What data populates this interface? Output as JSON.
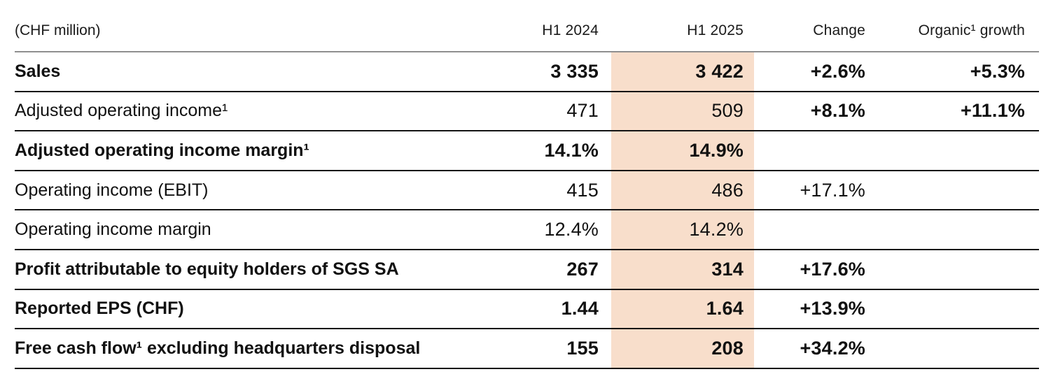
{
  "table": {
    "unit_label": "(CHF million)",
    "columns": [
      "H1 2024",
      "H1 2025",
      "Change",
      "Organic¹ growth"
    ],
    "rows": [
      {
        "label": "Sales",
        "h1_2024": "3 335",
        "h1_2025": "3 422",
        "change": "+2.6%",
        "organic": "+5.3%"
      },
      {
        "label": "Adjusted operating income¹",
        "h1_2024": "471",
        "h1_2025": "509",
        "change": "+8.1%",
        "organic": "+11.1%"
      },
      {
        "label": "Adjusted operating income margin¹",
        "h1_2024": "14.1%",
        "h1_2025": "14.9%",
        "change": "",
        "organic": ""
      },
      {
        "label": "Operating income (EBIT)",
        "h1_2024": "415",
        "h1_2025": "486",
        "change": "+17.1%",
        "organic": ""
      },
      {
        "label": "Operating income margin",
        "h1_2024": "12.4%",
        "h1_2025": "14.2%",
        "change": "",
        "organic": ""
      },
      {
        "label": "Profit attributable to equity holders of SGS SA",
        "h1_2024": "267",
        "h1_2025": "314",
        "change": "+17.6%",
        "organic": ""
      },
      {
        "label": "Reported EPS (CHF)",
        "h1_2024": "1.44",
        "h1_2025": "1.64",
        "change": "+13.9%",
        "organic": ""
      },
      {
        "label": "Free cash flow¹ excluding headquarters disposal",
        "h1_2024": "155",
        "h1_2025": "208",
        "change": "+34.2%",
        "organic": ""
      }
    ]
  },
  "colors": {
    "h1_2025_highlight": "#f8decb",
    "header_rule": "#8f8f8f",
    "row_rule": "#141414",
    "text": "#111111"
  }
}
